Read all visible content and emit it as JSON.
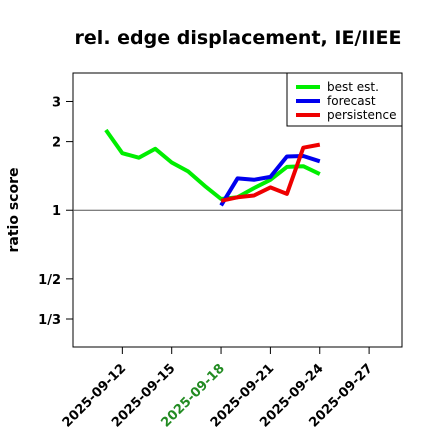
{
  "chart_data": {
    "type": "line",
    "title": "rel. edge displacement, IE/IIEE",
    "ylabel": "ratio score",
    "xlabel": "",
    "y_scale": "log",
    "ylim": [
      0.2512,
      4.0
    ],
    "xlim": [
      "2025-09-09",
      "2025-09-29"
    ],
    "yticks": [
      {
        "value": 3,
        "label": "3"
      },
      {
        "value": 2,
        "label": "2"
      },
      {
        "value": 1,
        "label": "1"
      },
      {
        "value": 0.5,
        "label": "1/2"
      },
      {
        "value": 0.3333,
        "label": "1/3"
      }
    ],
    "xticks": [
      {
        "date": "2025-09-12",
        "label": "2025-09-12",
        "color": "#000000"
      },
      {
        "date": "2025-09-15",
        "label": "2025-09-15",
        "color": "#000000"
      },
      {
        "date": "2025-09-18",
        "label": "2025-09-18",
        "color": "#228b22"
      },
      {
        "date": "2025-09-21",
        "label": "2025-09-21",
        "color": "#000000"
      },
      {
        "date": "2025-09-24",
        "label": "2025-09-24",
        "color": "#000000"
      },
      {
        "date": "2025-09-27",
        "label": "2025-09-27",
        "color": "#000000"
      }
    ],
    "reference_line": 1,
    "legend_position": "top-right",
    "series": [
      {
        "name": "best est.",
        "color": "#00ee00",
        "x": [
          "2025-09-11",
          "2025-09-12",
          "2025-09-13",
          "2025-09-14",
          "2025-09-15",
          "2025-09-16",
          "2025-09-17",
          "2025-09-18",
          "2025-09-19",
          "2025-09-20",
          "2025-09-21",
          "2025-09-22",
          "2025-09-23",
          "2025-09-24"
        ],
        "y": [
          2.25,
          1.78,
          1.7,
          1.86,
          1.62,
          1.48,
          1.28,
          1.12,
          1.14,
          1.25,
          1.36,
          1.55,
          1.56,
          1.44
        ]
      },
      {
        "name": "forecast",
        "color": "#0000ee",
        "x": [
          "2025-09-18",
          "2025-09-19",
          "2025-09-20",
          "2025-09-21",
          "2025-09-22",
          "2025-09-23",
          "2025-09-24"
        ],
        "y": [
          1.05,
          1.38,
          1.36,
          1.4,
          1.72,
          1.73,
          1.64
        ]
      },
      {
        "name": "persistence",
        "color": "#ee0000",
        "x": [
          "2025-09-18",
          "2025-09-19",
          "2025-09-20",
          "2025-09-21",
          "2025-09-22",
          "2025-09-23",
          "2025-09-24"
        ],
        "y": [
          1.1,
          1.14,
          1.16,
          1.26,
          1.18,
          1.88,
          1.94
        ]
      }
    ]
  }
}
